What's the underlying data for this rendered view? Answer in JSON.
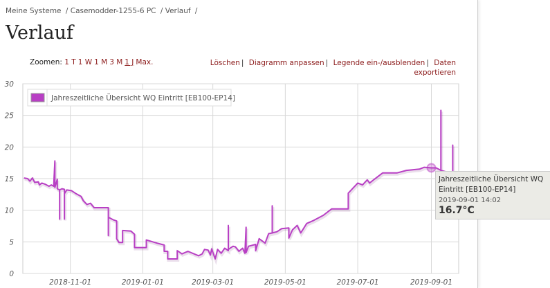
{
  "breadcrumb": [
    "Meine Systeme",
    "Casemodder-1255-6 PC",
    "Verlauf"
  ],
  "page_title": "Verlauf",
  "zoom": {
    "label": "Zoomen:",
    "options": [
      "1 T",
      "1 W",
      "1 M",
      "3 M",
      "1 J",
      "Max."
    ],
    "selected": "1 J"
  },
  "actions": {
    "delete": "Löschen",
    "adjust": "Diagramm anpassen",
    "legend_toggle": "Legende ein-/ausblenden",
    "export": "Daten exportieren"
  },
  "tooltip": {
    "series": "Jahreszeitliche Übersicht WQ Eintritt [EB100-EP14]",
    "time": "2019-09-01 14:02",
    "value": "16.7°C"
  },
  "chart_data": {
    "type": "line",
    "color": "#b83fc4",
    "xlim": [
      "2018-09-22",
      "2019-09-24"
    ],
    "ylim": [
      0,
      30
    ],
    "yticks": [
      0,
      5,
      10,
      15,
      20,
      25,
      30
    ],
    "xticks": [
      "2018-11-01",
      "2019-01-01",
      "2019-03-01",
      "2019-05-01",
      "2019-07-01",
      "2019-09-01"
    ],
    "grid": true,
    "legend_position": "top-left",
    "series": [
      {
        "name": "Jahreszeitliche Übersicht WQ Eintritt [EB100-EP14]",
        "points": [
          [
            "2018-09-23",
            15.1
          ],
          [
            "2018-09-26",
            15.0
          ],
          [
            "2018-09-28",
            14.6
          ],
          [
            "2018-09-30",
            15.1
          ],
          [
            "2018-10-02",
            14.4
          ],
          [
            "2018-10-05",
            14.5
          ],
          [
            "2018-10-06",
            14.0
          ],
          [
            "2018-10-08",
            14.3
          ],
          [
            "2018-10-11",
            14.1
          ],
          [
            "2018-10-14",
            13.8
          ],
          [
            "2018-10-16",
            14.0
          ],
          [
            "2018-10-18",
            13.8
          ],
          [
            "2018-10-19",
            17.8
          ],
          [
            "2018-10-19",
            13.6
          ],
          [
            "2018-10-21",
            14.9
          ],
          [
            "2018-10-21",
            13.4
          ],
          [
            "2018-10-23",
            13.2
          ],
          [
            "2018-10-23",
            8.6
          ],
          [
            "2018-10-23",
            13.2
          ],
          [
            "2018-10-25",
            13.4
          ],
          [
            "2018-10-27",
            13.3
          ],
          [
            "2018-10-27",
            8.6
          ],
          [
            "2018-10-27",
            12.6
          ],
          [
            "2018-10-29",
            13.2
          ],
          [
            "2018-11-02",
            13.1
          ],
          [
            "2018-11-06",
            12.6
          ],
          [
            "2018-11-10",
            12.2
          ],
          [
            "2018-11-12",
            11.5
          ],
          [
            "2018-11-15",
            10.9
          ],
          [
            "2018-11-18",
            11.1
          ],
          [
            "2018-11-21",
            10.4
          ],
          [
            "2018-12-03",
            10.4
          ],
          [
            "2018-12-03",
            6.0
          ],
          [
            "2018-12-03",
            8.9
          ],
          [
            "2018-12-07",
            8.5
          ],
          [
            "2018-12-10",
            8.3
          ],
          [
            "2018-12-10",
            5.5
          ],
          [
            "2018-12-12",
            4.9
          ],
          [
            "2018-12-15",
            4.9
          ],
          [
            "2018-12-15",
            6.8
          ],
          [
            "2018-12-22",
            6.7
          ],
          [
            "2018-12-25",
            6.2
          ],
          [
            "2018-12-25",
            4.1
          ],
          [
            "2019-01-04",
            4.1
          ],
          [
            "2019-01-04",
            5.3
          ],
          [
            "2019-01-13",
            4.8
          ],
          [
            "2019-01-19",
            4.5
          ],
          [
            "2019-01-19",
            3.5
          ],
          [
            "2019-01-22",
            3.5
          ],
          [
            "2019-01-22",
            2.3
          ],
          [
            "2019-01-30",
            2.3
          ],
          [
            "2019-01-30",
            3.6
          ],
          [
            "2019-02-03",
            3.1
          ],
          [
            "2019-02-08",
            3.5
          ],
          [
            "2019-02-17",
            2.8
          ],
          [
            "2019-02-20",
            3.1
          ],
          [
            "2019-02-22",
            3.8
          ],
          [
            "2019-02-25",
            3.7
          ],
          [
            "2019-02-27",
            2.9
          ],
          [
            "2019-02-28",
            3.9
          ],
          [
            "2019-03-03",
            2.3
          ],
          [
            "2019-03-05",
            3.8
          ],
          [
            "2019-03-08",
            3.2
          ],
          [
            "2019-03-11",
            4.0
          ],
          [
            "2019-03-14",
            3.6
          ],
          [
            "2019-03-14",
            7.6
          ],
          [
            "2019-03-14",
            3.8
          ],
          [
            "2019-03-18",
            4.3
          ],
          [
            "2019-03-20",
            4.2
          ],
          [
            "2019-03-23",
            3.5
          ],
          [
            "2019-03-26",
            4.0
          ],
          [
            "2019-03-28",
            3.2
          ],
          [
            "2019-03-29",
            7.3
          ],
          [
            "2019-03-29",
            3.3
          ],
          [
            "2019-03-31",
            4.3
          ],
          [
            "2019-04-06",
            4.6
          ],
          [
            "2019-04-06",
            3.6
          ],
          [
            "2019-04-09",
            5.5
          ],
          [
            "2019-04-14",
            4.8
          ],
          [
            "2019-04-17",
            6.3
          ],
          [
            "2019-04-20",
            6.4
          ],
          [
            "2019-04-20",
            10.7
          ],
          [
            "2019-04-20",
            6.4
          ],
          [
            "2019-04-24",
            6.6
          ],
          [
            "2019-04-28",
            7.1
          ],
          [
            "2019-05-04",
            7.2
          ],
          [
            "2019-05-04",
            5.6
          ],
          [
            "2019-05-07",
            6.9
          ],
          [
            "2019-05-11",
            7.6
          ],
          [
            "2019-05-14",
            6.4
          ],
          [
            "2019-05-19",
            7.9
          ],
          [
            "2019-05-25",
            8.4
          ],
          [
            "2019-06-02",
            9.2
          ],
          [
            "2019-06-09",
            10.2
          ],
          [
            "2019-06-23",
            10.2
          ],
          [
            "2019-06-23",
            12.7
          ],
          [
            "2019-07-01",
            14.3
          ],
          [
            "2019-07-05",
            14.0
          ],
          [
            "2019-07-09",
            14.8
          ],
          [
            "2019-07-11",
            14.3
          ],
          [
            "2019-07-15",
            14.9
          ],
          [
            "2019-07-22",
            15.9
          ],
          [
            "2019-08-03",
            15.9
          ],
          [
            "2019-08-11",
            16.3
          ],
          [
            "2019-08-22",
            16.5
          ],
          [
            "2019-08-26",
            16.8
          ],
          [
            "2019-09-01",
            16.7
          ],
          [
            "2019-09-05",
            16.7
          ],
          [
            "2019-09-09",
            16.3
          ],
          [
            "2019-09-09",
            25.8
          ],
          [
            "2019-09-09",
            16.3
          ],
          [
            "2019-09-13",
            16.1
          ],
          [
            "2019-09-19",
            15.9
          ],
          [
            "2019-09-19",
            20.3
          ],
          [
            "2019-09-19",
            15.9
          ],
          [
            "2019-09-22",
            15.9
          ]
        ]
      }
    ]
  }
}
